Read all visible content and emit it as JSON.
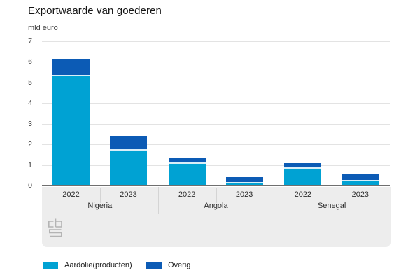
{
  "header": {
    "title": "Exportwaarde van goederen",
    "unit": "mld euro"
  },
  "chart_data": {
    "type": "bar",
    "stacked": true,
    "title": "Exportwaarde van goederen",
    "ylabel": "mld euro",
    "ylim": [
      0,
      7
    ],
    "yticks": [
      0,
      1,
      2,
      3,
      4,
      5,
      6,
      7
    ],
    "grid": true,
    "legend_position": "bottom-left",
    "categories": [
      "2022",
      "2023",
      "2022",
      "2023",
      "2022",
      "2023"
    ],
    "group_labels": [
      "Nigeria",
      "Angola",
      "Senegal"
    ],
    "series": [
      {
        "name": "Aardolie(producten)",
        "color": "#00a2d3",
        "values": [
          5.3,
          1.7,
          1.05,
          0.1,
          0.8,
          0.2
        ]
      },
      {
        "name": "Overig",
        "color": "#0c5bb5",
        "values": [
          0.8,
          0.7,
          0.3,
          0.3,
          0.3,
          0.35
        ]
      }
    ],
    "totals": [
      6.1,
      2.4,
      1.35,
      0.4,
      1.1,
      0.55
    ],
    "source_logo": "cbs-logo"
  }
}
